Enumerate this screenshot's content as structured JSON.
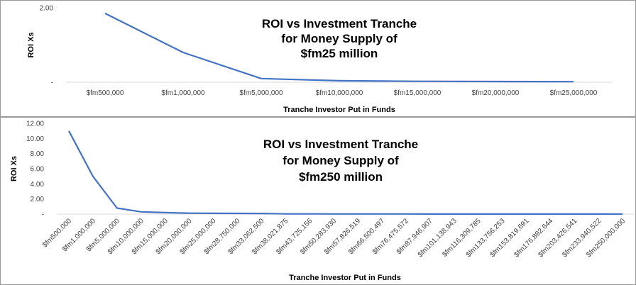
{
  "chart_data": [
    {
      "type": "line",
      "title": "ROI vs Investment Tranche for Money Supply of $fm25 million",
      "title_lines": [
        "ROI vs Investment Tranche",
        "for Money Supply of",
        "$fm25 million"
      ],
      "xlabel": "Tranche Investor Put in Funds",
      "ylabel": "ROI Xs",
      "categories": [
        "$fm500,000",
        "$fm1,000,000",
        "$fm5,000,000",
        "$fm10,000,000",
        "$fm15,000,000",
        "$fm20,000,000",
        "$fm25,000,000"
      ],
      "series": [
        {
          "values": [
            1.85,
            0.8,
            0.1,
            0.04,
            0.025,
            0.02,
            0.015
          ]
        }
      ],
      "ylim": [
        0,
        2
      ],
      "yticks": [
        "-",
        "2.00"
      ],
      "line_color": "#4472c4",
      "grid": false
    },
    {
      "type": "line",
      "title": "ROI vs Investment Tranche for Money Supply of $fm250 million",
      "title_lines": [
        "ROI vs Investment Tranche",
        "for Money Supply of",
        "$fm250 million"
      ],
      "xlabel": "Tranche Investor Put in Funds",
      "ylabel": "ROI Xs",
      "categories": [
        "$fm500,000",
        "$fm1,000,000",
        "$fm5,000,000",
        "$fm10,000,000",
        "$fm15,000,000",
        "$fm20,000,000",
        "$fm25,000,000",
        "$fm28,750,000",
        "$fm33,062,500",
        "$fm38,021,875",
        "$fm43,725,156",
        "$fm50,283,930",
        "$fm57,826,519",
        "$fm66,500,497",
        "$fm76,475,572",
        "$fm87,946,907",
        "$fm101,138,943",
        "$fm116,309,785",
        "$fm133,756,253",
        "$fm153,819,691",
        "$fm176,892,644",
        "$fm203,426,541",
        "$fm233,940,522",
        "$fm250,000,000"
      ],
      "series": [
        {
          "values": [
            11.0,
            5.0,
            0.8,
            0.3,
            0.2,
            0.12,
            0.1,
            0.09,
            0.08,
            0.03,
            0.025,
            0.022,
            0.02,
            0.018,
            0.015,
            0.013,
            0.012,
            0.01,
            0.009,
            0.008,
            0.007,
            0.006,
            0.005,
            0.004
          ]
        }
      ],
      "ylim": [
        0,
        12
      ],
      "yticks": [
        "-",
        "2.00",
        "4.00",
        "6.00",
        "8.00",
        "10.00",
        "12.00"
      ],
      "line_color": "#4472c4",
      "grid": false
    }
  ]
}
